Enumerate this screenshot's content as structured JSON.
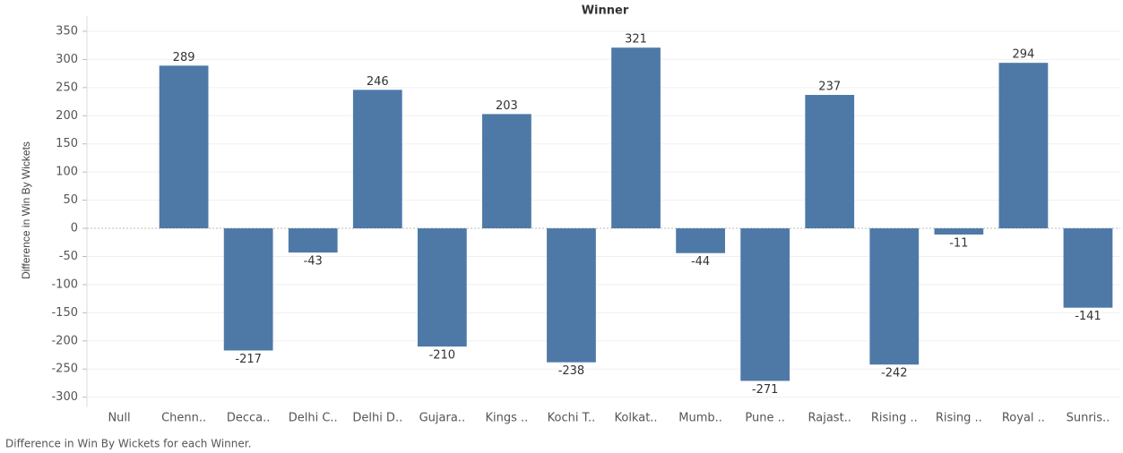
{
  "chart_data": {
    "type": "bar",
    "title": "Winner",
    "ylabel": "Difference in Win By Wickets",
    "caption": "Difference in Win By Wickets for each Winner.",
    "categories": [
      "Null",
      "Chenn..",
      "Decca..",
      "Delhi C..",
      "Delhi D..",
      "Gujara..",
      "Kings ..",
      "Kochi T..",
      "Kolkat..",
      "Mumb..",
      "Pune ..",
      "Rajast..",
      "Rising ..",
      "Rising ..",
      "Royal ..",
      "Sunris.."
    ],
    "values": [
      null,
      289,
      -217,
      -43,
      246,
      -210,
      203,
      -238,
      321,
      -44,
      -271,
      237,
      -242,
      -11,
      294,
      -141
    ],
    "color": "#4e79a7",
    "ylim": [
      -318,
      377
    ],
    "yticks": [
      -300,
      -250,
      -200,
      -150,
      -100,
      -50,
      0,
      50,
      100,
      150,
      200,
      250,
      300,
      350
    ],
    "grid": true
  }
}
